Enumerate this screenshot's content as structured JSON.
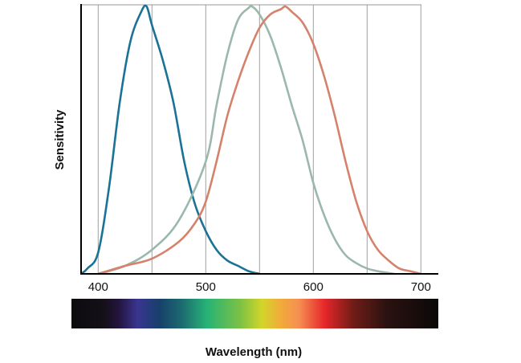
{
  "chart_data": {
    "type": "line",
    "title": "",
    "xlabel": "Wavelength (nm)",
    "ylabel": "Sensitivity",
    "xlim": [
      384,
      716
    ],
    "ylim": [
      0,
      1
    ],
    "x_ticks": [
      400,
      500,
      600,
      700
    ],
    "x_gridlines": [
      400,
      450,
      500,
      550,
      600,
      650,
      700
    ],
    "grid": true,
    "legend": "none",
    "series": [
      {
        "color": "#1a7396",
        "x": [
          384,
          390,
          400,
          410,
          420,
          430,
          440,
          445,
          450,
          460,
          470,
          480,
          490,
          500,
          510,
          520,
          530,
          540,
          550
        ],
        "y": [
          0,
          0.02,
          0.08,
          0.32,
          0.64,
          0.87,
          0.98,
          1.0,
          0.93,
          0.8,
          0.64,
          0.42,
          0.26,
          0.16,
          0.09,
          0.05,
          0.03,
          0.01,
          0
        ]
      },
      {
        "color": "#9cb8aa",
        "x": [
          400,
          425,
          450,
          475,
          500,
          510,
          520,
          530,
          540,
          543,
          550,
          560,
          570,
          580,
          590,
          600,
          610,
          620,
          630,
          640,
          650,
          660,
          675
        ],
        "y": [
          0,
          0.03,
          0.09,
          0.2,
          0.42,
          0.63,
          0.82,
          0.95,
          0.995,
          1.0,
          0.97,
          0.89,
          0.77,
          0.63,
          0.5,
          0.34,
          0.22,
          0.13,
          0.07,
          0.04,
          0.02,
          0.01,
          0
        ]
      },
      {
        "color": "#d5826c",
        "x": [
          400,
          425,
          450,
          475,
          490,
          500,
          510,
          520,
          530,
          540,
          550,
          560,
          570,
          574,
          580,
          590,
          600,
          610,
          620,
          630,
          640,
          650,
          660,
          670,
          680,
          690,
          700
        ],
        "y": [
          0,
          0.03,
          0.057,
          0.12,
          0.19,
          0.27,
          0.42,
          0.59,
          0.72,
          0.83,
          0.92,
          0.97,
          0.99,
          1.0,
          0.98,
          0.94,
          0.86,
          0.74,
          0.59,
          0.42,
          0.27,
          0.16,
          0.09,
          0.05,
          0.02,
          0.01,
          0
        ]
      }
    ],
    "spectrum_bar": {
      "stops": [
        {
          "pos": 0,
          "color": "#0b0b0d"
        },
        {
          "pos": 0.09,
          "color": "#151019"
        },
        {
          "pos": 0.13,
          "color": "#24153f"
        },
        {
          "pos": 0.18,
          "color": "#3a3590"
        },
        {
          "pos": 0.24,
          "color": "#17406a"
        },
        {
          "pos": 0.3,
          "color": "#1c6a70"
        },
        {
          "pos": 0.37,
          "color": "#27b376"
        },
        {
          "pos": 0.46,
          "color": "#7cc144"
        },
        {
          "pos": 0.52,
          "color": "#d3d52a"
        },
        {
          "pos": 0.57,
          "color": "#f2ab3a"
        },
        {
          "pos": 0.62,
          "color": "#f58f52"
        },
        {
          "pos": 0.69,
          "color": "#e6262a"
        },
        {
          "pos": 0.77,
          "color": "#6e1c16"
        },
        {
          "pos": 0.86,
          "color": "#2a1210"
        },
        {
          "pos": 1,
          "color": "#0a0808"
        }
      ]
    }
  }
}
